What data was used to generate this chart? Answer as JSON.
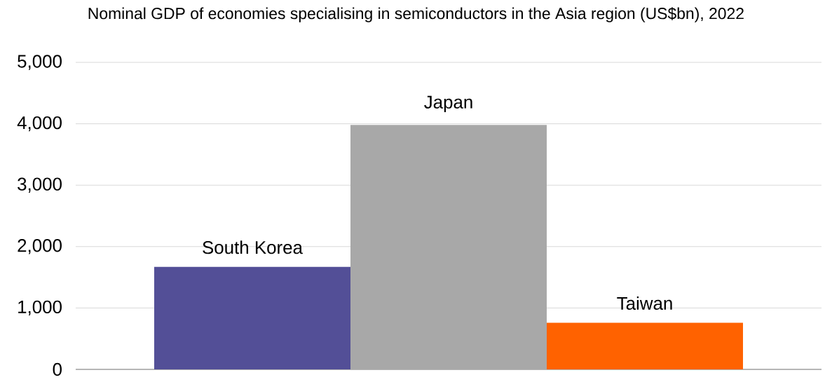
{
  "chart_data": {
    "type": "bar",
    "title": "Nominal GDP of economies specialising in semiconductors in the Asia region (US$bn), 2022",
    "categories": [
      "South Korea",
      "Japan",
      "Taiwan"
    ],
    "values": [
      1670,
      3980,
      760
    ],
    "colors": [
      "#534f97",
      "#a8a8a8",
      "#ff6200"
    ],
    "ylim": [
      0,
      5000
    ],
    "yticks": [
      0,
      {
        "value": 1000,
        "label": "1,000"
      },
      {
        "value": 2000,
        "label": "2,000"
      },
      {
        "value": 3000,
        "label": "3,000"
      },
      {
        "value": 4000,
        "label": "4,000"
      },
      {
        "value": 5000,
        "label": "5,000"
      }
    ],
    "grid": "y"
  }
}
